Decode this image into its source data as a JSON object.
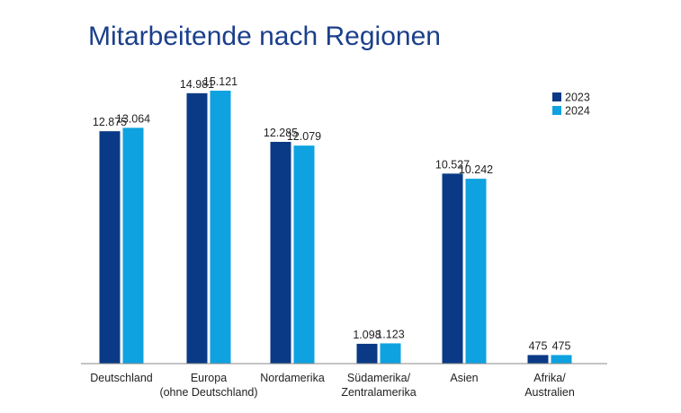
{
  "chart_data": {
    "type": "bar",
    "title": "Mitarbeitende nach Regionen",
    "categories": [
      [
        "Deutschland"
      ],
      [
        "Europa",
        "(ohne Deutschland)"
      ],
      [
        "Nordamerika"
      ],
      [
        "Südamerika/",
        "Zentralamerika"
      ],
      [
        "Asien"
      ],
      [
        "Afrika/",
        "Australien"
      ]
    ],
    "series": [
      {
        "name": "2023",
        "color": "#0a3a85",
        "values": [
          12875,
          14981,
          12285,
          1098,
          10527,
          475
        ],
        "labels": [
          "12.875",
          "14.981",
          "12.285",
          "1.098",
          "10.527",
          "475"
        ]
      },
      {
        "name": "2024",
        "color": "#0ea2e0",
        "values": [
          13064,
          15121,
          12079,
          1123,
          10242,
          475
        ],
        "labels": [
          "13.064",
          "15.121",
          "12.079",
          "1.123",
          "10.242",
          "475"
        ]
      }
    ],
    "ylim": [
      0,
      15121
    ],
    "grid": false,
    "legend": "top-right"
  }
}
